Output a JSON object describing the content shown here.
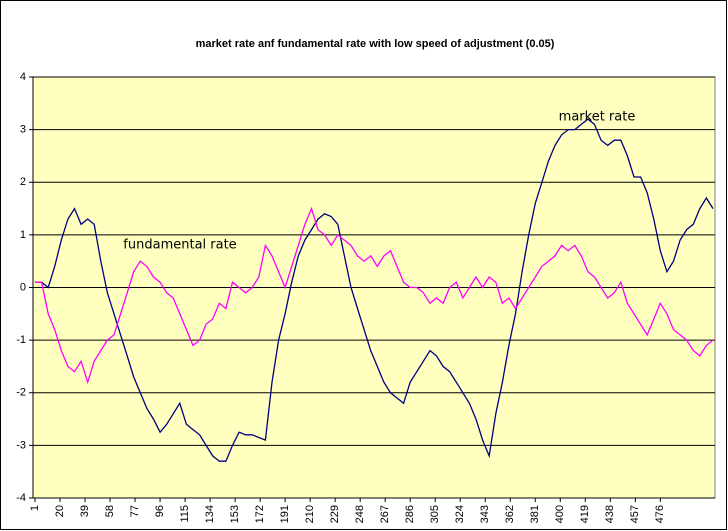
{
  "chart_data": {
    "type": "line",
    "title": "market rate anf fundamental rate with low speed of adjustment (0.05)",
    "annotations": [
      "market rate",
      "fundamental rate"
    ],
    "x": [
      1,
      6,
      11,
      16,
      21,
      26,
      31,
      36,
      41,
      46,
      51,
      56,
      61,
      66,
      71,
      76,
      81,
      86,
      91,
      96,
      101,
      106,
      111,
      116,
      121,
      126,
      131,
      136,
      141,
      146,
      151,
      156,
      161,
      166,
      171,
      176,
      181,
      186,
      191,
      196,
      201,
      206,
      211,
      216,
      221,
      226,
      231,
      236,
      241,
      246,
      251,
      256,
      261,
      266,
      271,
      276,
      281,
      286,
      291,
      296,
      301,
      306,
      311,
      316,
      321,
      326,
      331,
      336,
      341,
      346,
      351,
      356,
      361,
      366,
      371,
      376,
      381,
      386,
      391,
      396,
      401,
      406,
      411,
      416,
      421,
      426,
      431,
      436,
      441,
      446,
      451,
      456,
      461,
      466,
      471,
      476,
      481,
      486,
      491,
      496,
      501,
      506,
      511,
      516
    ],
    "series": [
      {
        "name": "market rate",
        "color": "#000080",
        "values": [
          0.1,
          0.1,
          0.0,
          0.4,
          0.9,
          1.3,
          1.5,
          1.2,
          1.3,
          1.2,
          0.5,
          -0.1,
          -0.5,
          -0.9,
          -1.3,
          -1.7,
          -2.0,
          -2.3,
          -2.5,
          -2.75,
          -2.6,
          -2.4,
          -2.2,
          -2.6,
          -2.7,
          -2.8,
          -3.0,
          -3.2,
          -3.3,
          -3.3,
          -3.0,
          -2.75,
          -2.8,
          -2.8,
          -2.85,
          -2.9,
          -1.8,
          -1.0,
          -0.5,
          0.1,
          0.6,
          0.9,
          1.1,
          1.3,
          1.4,
          1.35,
          1.2,
          0.6,
          0.0,
          -0.4,
          -0.8,
          -1.2,
          -1.5,
          -1.8,
          -2.0,
          -2.1,
          -2.2,
          -1.8,
          -1.6,
          -1.4,
          -1.2,
          -1.3,
          -1.5,
          -1.6,
          -1.8,
          -2.0,
          -2.2,
          -2.5,
          -2.9,
          -3.2,
          -2.4,
          -1.8,
          -1.1,
          -0.5,
          0.3,
          1.0,
          1.6,
          2.0,
          2.4,
          2.7,
          2.9,
          3.0,
          3.0,
          3.1,
          3.2,
          3.1,
          2.8,
          2.7,
          2.8,
          2.8,
          2.5,
          2.1,
          2.1,
          1.8,
          1.3,
          0.7,
          0.3,
          0.5,
          0.9,
          1.1,
          1.2,
          1.5,
          1.7,
          1.5
        ]
      },
      {
        "name": "fundamental rate",
        "color": "#ff00ff",
        "values": [
          0.1,
          0.1,
          -0.5,
          -0.8,
          -1.2,
          -1.5,
          -1.6,
          -1.4,
          -1.8,
          -1.4,
          -1.2,
          -1.0,
          -0.9,
          -0.5,
          -0.1,
          0.3,
          0.5,
          0.4,
          0.2,
          0.1,
          -0.1,
          -0.2,
          -0.5,
          -0.8,
          -1.1,
          -1.0,
          -0.7,
          -0.6,
          -0.3,
          -0.4,
          0.1,
          0.0,
          -0.1,
          0.0,
          0.2,
          0.8,
          0.6,
          0.3,
          0.0,
          0.4,
          0.8,
          1.2,
          1.5,
          1.1,
          1.0,
          0.8,
          1.0,
          0.9,
          0.8,
          0.6,
          0.5,
          0.6,
          0.4,
          0.6,
          0.7,
          0.4,
          0.1,
          0.0,
          0.0,
          -0.1,
          -0.3,
          -0.2,
          -0.3,
          0.0,
          0.1,
          -0.2,
          0.0,
          0.2,
          0.0,
          0.2,
          0.1,
          -0.3,
          -0.2,
          -0.4,
          -0.2,
          0.0,
          0.2,
          0.4,
          0.5,
          0.6,
          0.8,
          0.7,
          0.8,
          0.6,
          0.3,
          0.2,
          0.0,
          -0.2,
          -0.1,
          0.1,
          -0.3,
          -0.5,
          -0.7,
          -0.9,
          -0.6,
          -0.3,
          -0.5,
          -0.8,
          -0.9,
          -1.0,
          -1.2,
          -1.3,
          -1.1,
          -1.0
        ]
      }
    ],
    "xlim": [
      1,
      516
    ],
    "xticks": [
      1,
      20,
      39,
      58,
      77,
      96,
      115,
      134,
      153,
      172,
      191,
      210,
      229,
      248,
      267,
      286,
      305,
      324,
      343,
      362,
      381,
      400,
      419,
      438,
      457,
      476
    ],
    "ylim": [
      -4,
      4
    ],
    "yticks": [
      -4,
      -3,
      -2,
      -1,
      0,
      1,
      2,
      3,
      4
    ],
    "grid": true,
    "plot_background": "#ffffc0"
  }
}
